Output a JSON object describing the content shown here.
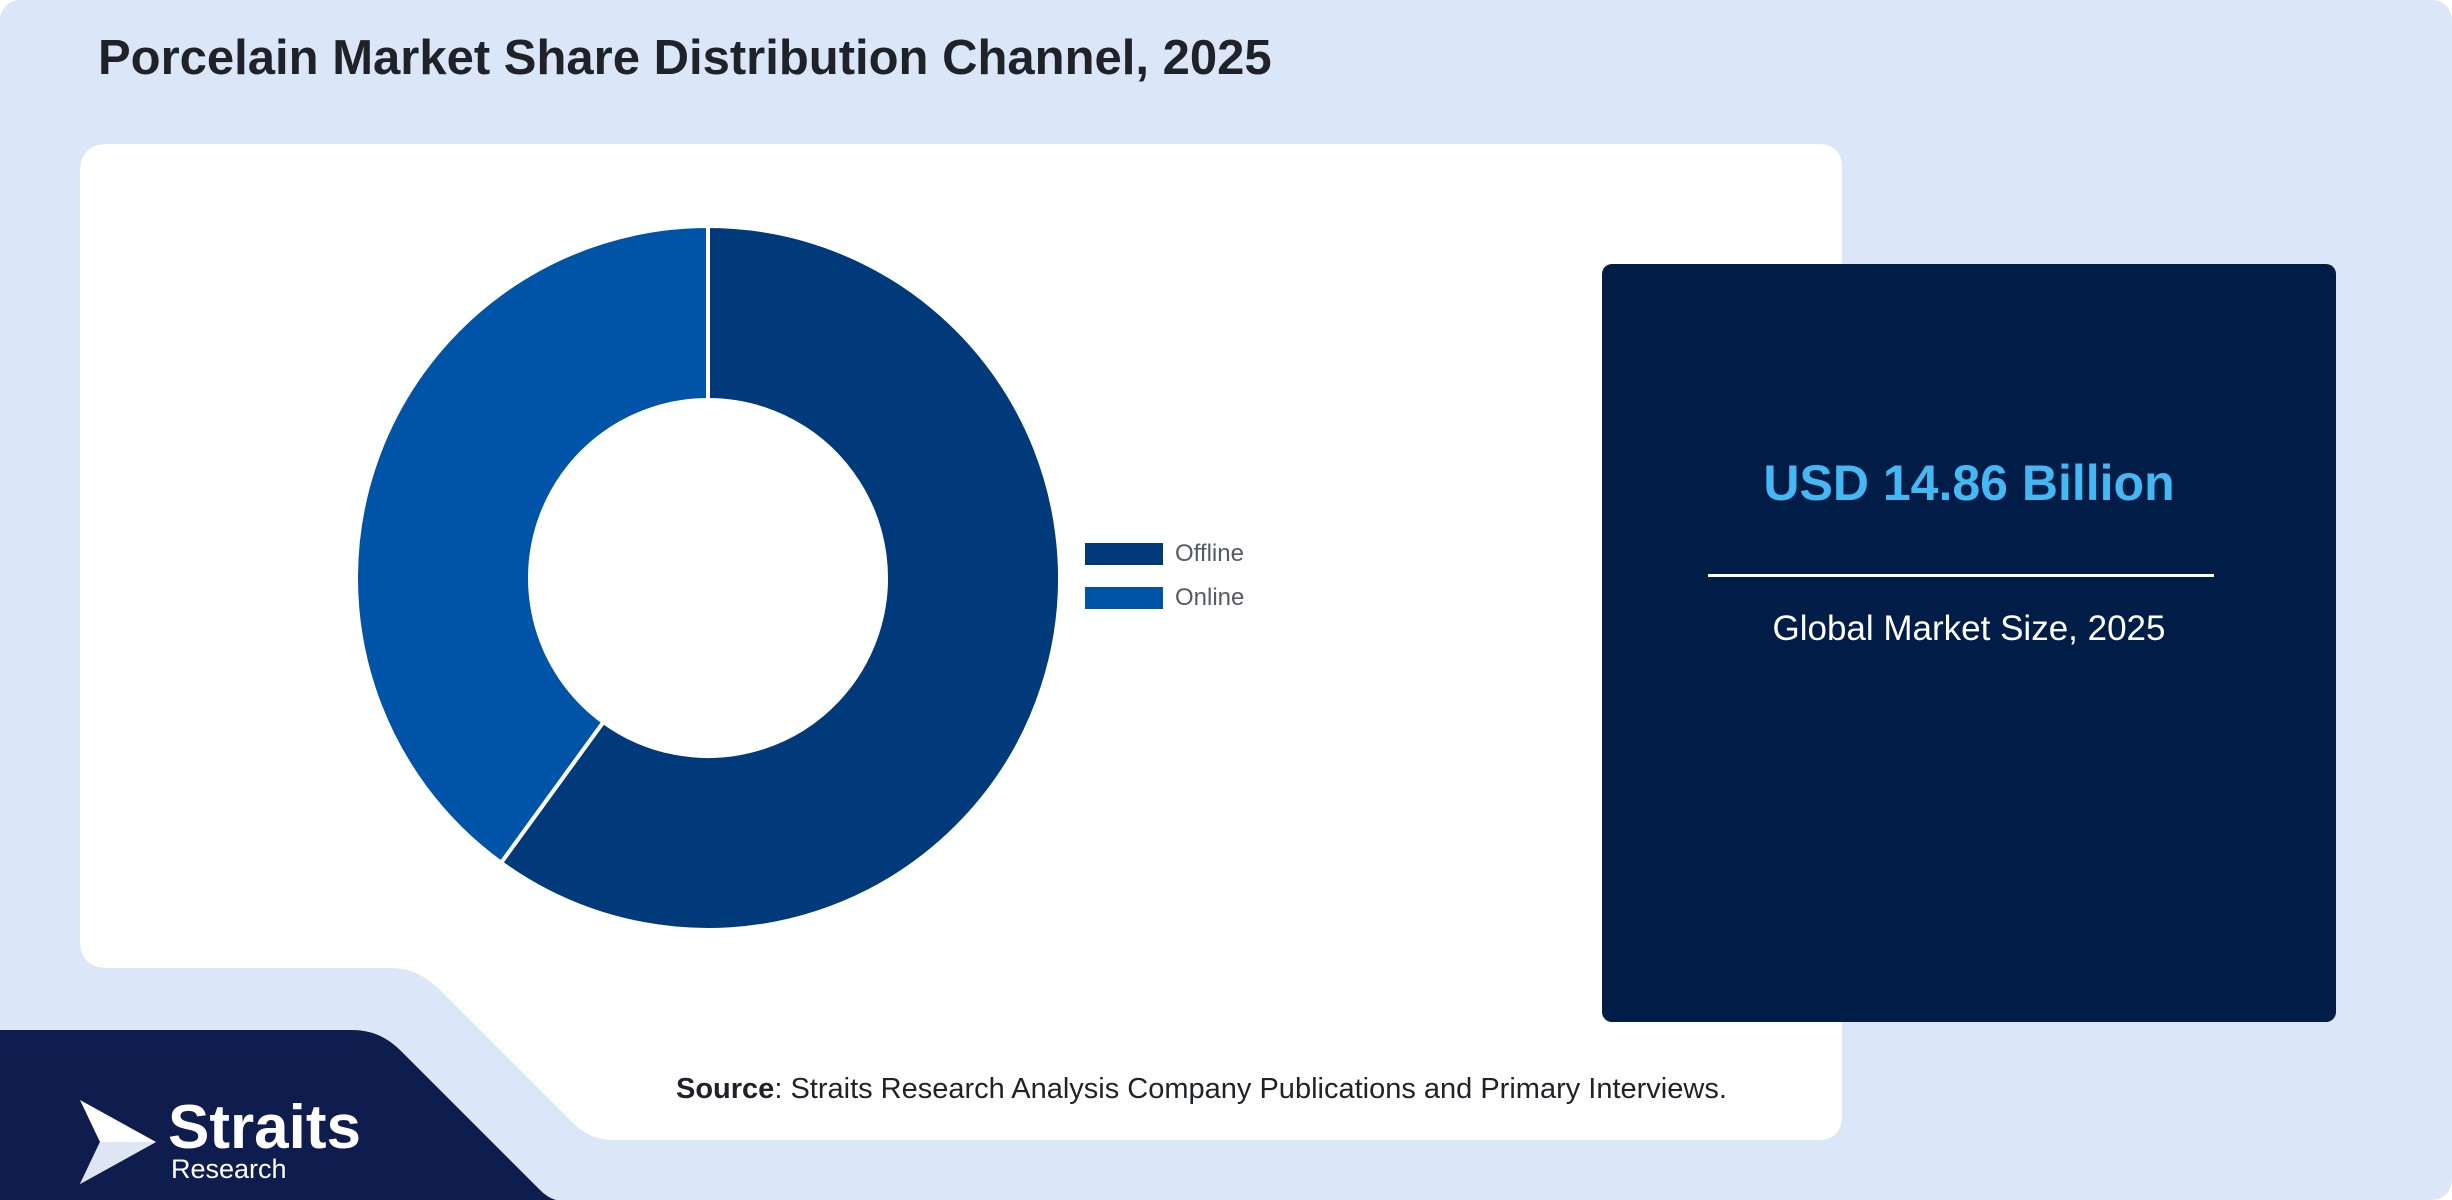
{
  "page": {
    "title": "Porcelain Market Share Distribution Channel, 2025"
  },
  "chart_data": {
    "type": "pie",
    "variant": "donut",
    "categories": [
      "Offline",
      "Online"
    ],
    "values": [
      60,
      40
    ],
    "colors": [
      "#003a7a",
      "#0054a8"
    ],
    "title": "",
    "legend_position": "right"
  },
  "market": {
    "value": "USD 14.86 Billion",
    "caption": "Global Market Size, 2025"
  },
  "source": {
    "label": "Source",
    "text": ": Straits Research Analysis Company Publications and Primary Interviews."
  },
  "logo": {
    "name": "Straits",
    "sub": "Research"
  },
  "colors": {
    "page_background": "#dbe7f8",
    "card_background": "#ffffff",
    "dark_navy": "#001d47",
    "logo_block": "#0e1c4e",
    "highlight_value": "#45b8f4"
  }
}
